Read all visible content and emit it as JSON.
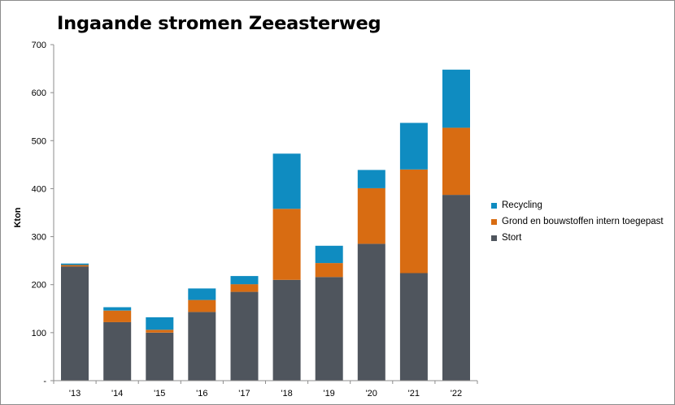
{
  "chart_data": {
    "type": "bar",
    "stacked": true,
    "title": "Ingaande stromen Zeeasterweg",
    "xlabel": "",
    "ylabel": "Kton",
    "categories": [
      "'13",
      "'14",
      "'15",
      "'16",
      "'17",
      "'18",
      "'19",
      "'20",
      "'21",
      "'22"
    ],
    "ylim": [
      0,
      700
    ],
    "yticks": [
      {
        "value": 0,
        "label": "-"
      },
      {
        "value": 100,
        "label": "100"
      },
      {
        "value": 200,
        "label": "200"
      },
      {
        "value": 300,
        "label": "300"
      },
      {
        "value": 400,
        "label": "400"
      },
      {
        "value": 500,
        "label": "500"
      },
      {
        "value": 600,
        "label": "600"
      },
      {
        "value": 700,
        "label": "700"
      }
    ],
    "grid": false,
    "legend_position": "right",
    "series": [
      {
        "name": "Stort",
        "color": "#4f555d",
        "values": [
          238,
          122,
          100,
          143,
          185,
          210,
          216,
          285,
          224,
          387
        ]
      },
      {
        "name": "Grond en bouwstoffen intern toegepast",
        "color": "#d86c12",
        "values": [
          3,
          24,
          6,
          25,
          16,
          148,
          29,
          116,
          216,
          140
        ]
      },
      {
        "name": "Recycling",
        "color": "#0f8cc1",
        "values": [
          3,
          7,
          26,
          24,
          17,
          115,
          36,
          38,
          97,
          121
        ]
      }
    ]
  }
}
